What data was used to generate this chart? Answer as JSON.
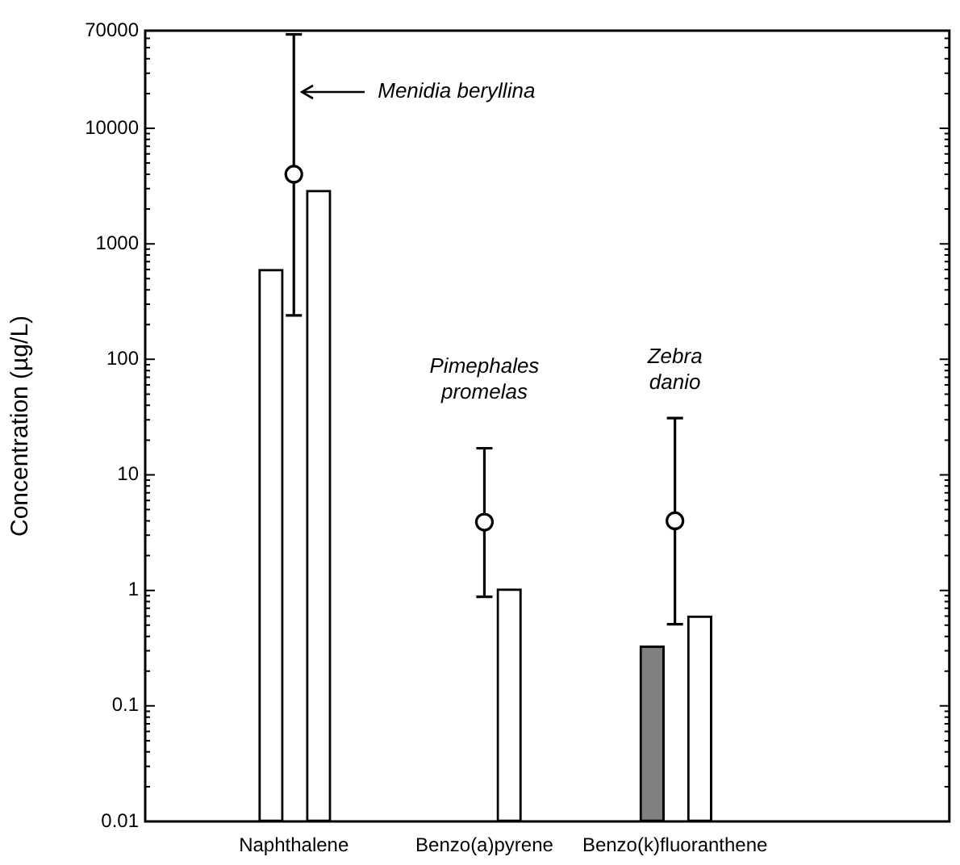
{
  "chart_data": {
    "type": "bar",
    "ylabel": "Concentration (µg/L)",
    "log": true,
    "categories": [
      "Naphthalene",
      "Benzo(a)pyrene",
      "Benzo(k)fluoranthene"
    ],
    "series": [
      {
        "colors": [
          "#ffffff",
          "#ffffff",
          "#808080"
        ],
        "values": [
          600,
          null,
          0.33
        ]
      },
      {
        "type": "scatter",
        "color": "#000000",
        "x": [
          "Naphthalene",
          "Benzo(a)pyrene",
          "Benzo(k)fluoranthene"
        ],
        "values": [
          4000,
          3.9,
          4
        ],
        "errors": [
          [
            240,
            65000
          ],
          [
            0.88,
            17
          ],
          [
            0.51,
            31
          ]
        ],
        "marker": "circle"
      },
      {
        "colors": [
          "#ffffff",
          "#ffffff",
          "#ffffff"
        ],
        "values": [
          2900,
          1.03,
          0.6
        ]
      }
    ],
    "ylim": [
      0.01,
      70000
    ],
    "yticks": [
      0.01,
      0.1,
      1,
      10,
      100,
      1000,
      10000,
      70000
    ],
    "grid": false,
    "legend": false,
    "annotations": [
      "Menidia beryllina",
      "Pimephales promelas",
      "Zebra danio"
    ]
  }
}
